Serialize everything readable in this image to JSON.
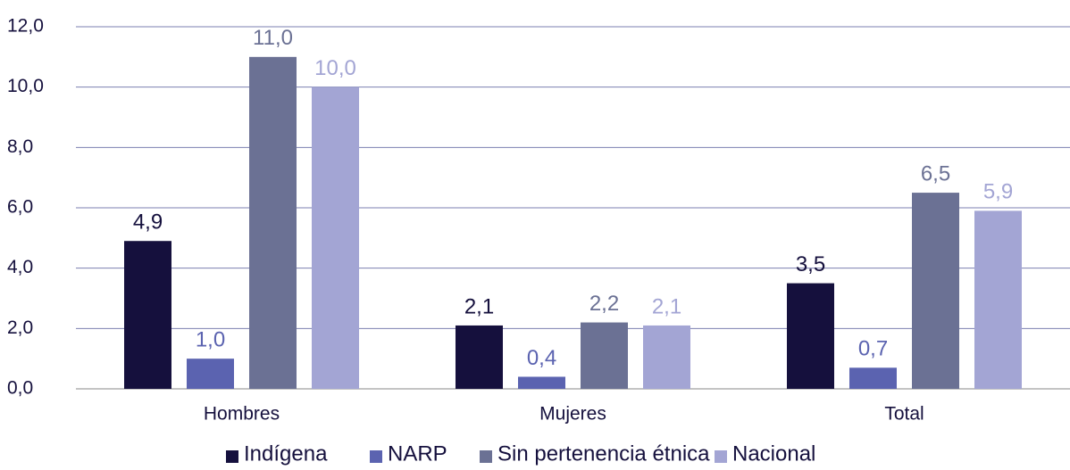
{
  "chart_data": {
    "type": "bar",
    "categories": [
      "Hombres",
      "Mujeres",
      "Total"
    ],
    "series": [
      {
        "name": "Indígena",
        "color": "#15103d",
        "values": [
          4.9,
          2.1,
          3.5
        ],
        "value_labels": [
          "4,9",
          "2,1",
          "3,5"
        ]
      },
      {
        "name": "NARP",
        "color": "#5b63b0",
        "values": [
          1.0,
          0.4,
          0.7
        ],
        "value_labels": [
          "1,0",
          "0,4",
          "0,7"
        ]
      },
      {
        "name": "Sin pertenencia étnica",
        "color": "#6b7194",
        "values": [
          11.0,
          2.2,
          6.5
        ],
        "value_labels": [
          "11,0",
          "2,2",
          "6,5"
        ]
      },
      {
        "name": "Nacional",
        "color": "#a3a5d4",
        "values": [
          10.0,
          2.1,
          5.9
        ],
        "value_labels": [
          "10,0",
          "2,1",
          "5,9"
        ]
      }
    ],
    "ylim": [
      0,
      12
    ],
    "yticks": [
      {
        "value": 0,
        "label": "0,0"
      },
      {
        "value": 2,
        "label": "2,0"
      },
      {
        "value": 4,
        "label": "4,0"
      },
      {
        "value": 6,
        "label": "6,0"
      },
      {
        "value": 8,
        "label": "8,0"
      },
      {
        "value": 10,
        "label": "10,0"
      },
      {
        "value": 12,
        "label": "12,0"
      }
    ],
    "grid": true,
    "legend": "bottom"
  }
}
